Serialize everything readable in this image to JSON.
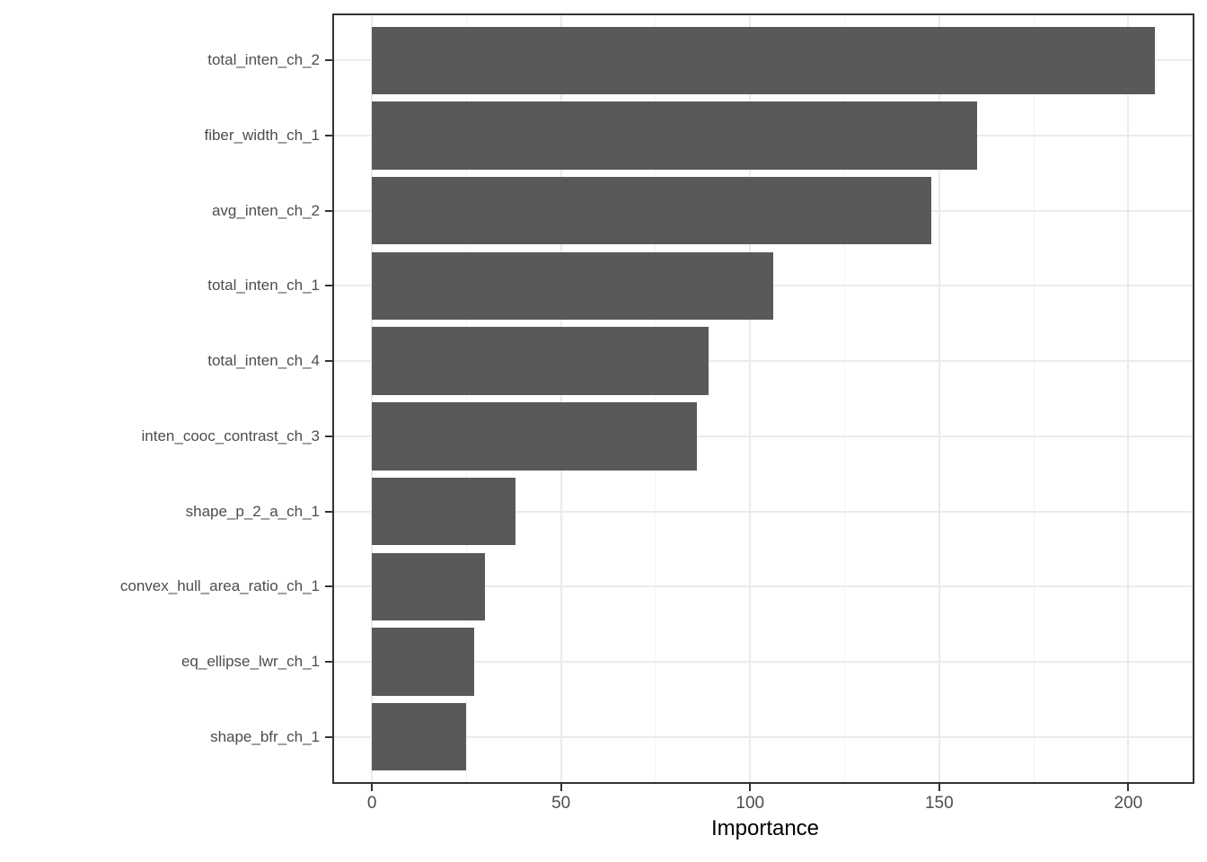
{
  "chart_data": {
    "type": "bar",
    "orientation": "horizontal",
    "title": "",
    "xlabel": "Importance",
    "ylabel": "",
    "categories": [
      "total_inten_ch_2",
      "fiber_width_ch_1",
      "avg_inten_ch_2",
      "total_inten_ch_1",
      "total_inten_ch_4",
      "inten_cooc_contrast_ch_3",
      "shape_p_2_a_ch_1",
      "convex_hull_area_ratio_ch_1",
      "eq_ellipse_lwr_ch_1",
      "shape_bfr_ch_1"
    ],
    "values": [
      207,
      160,
      148,
      106,
      89,
      86,
      38,
      30,
      27,
      25
    ],
    "x_ticks": [
      0,
      50,
      100,
      150,
      200
    ],
    "x_tick_labels": [
      "0",
      "50",
      "100",
      "150",
      "200"
    ],
    "x_minor_ticks": [
      25,
      75,
      125,
      175
    ],
    "x_domain": [
      -10,
      217
    ],
    "bar_fraction": 0.9,
    "grid": true,
    "legend": false,
    "colors": {
      "bar": "#595959",
      "grid_major": "#EBEBEB",
      "grid_minor": "#F3F3F3",
      "panel_border": "#333333",
      "tick": "#333333",
      "axis_text": "#4D4D4D",
      "axis_title": "#000000",
      "background": "#FFFFFF"
    }
  }
}
